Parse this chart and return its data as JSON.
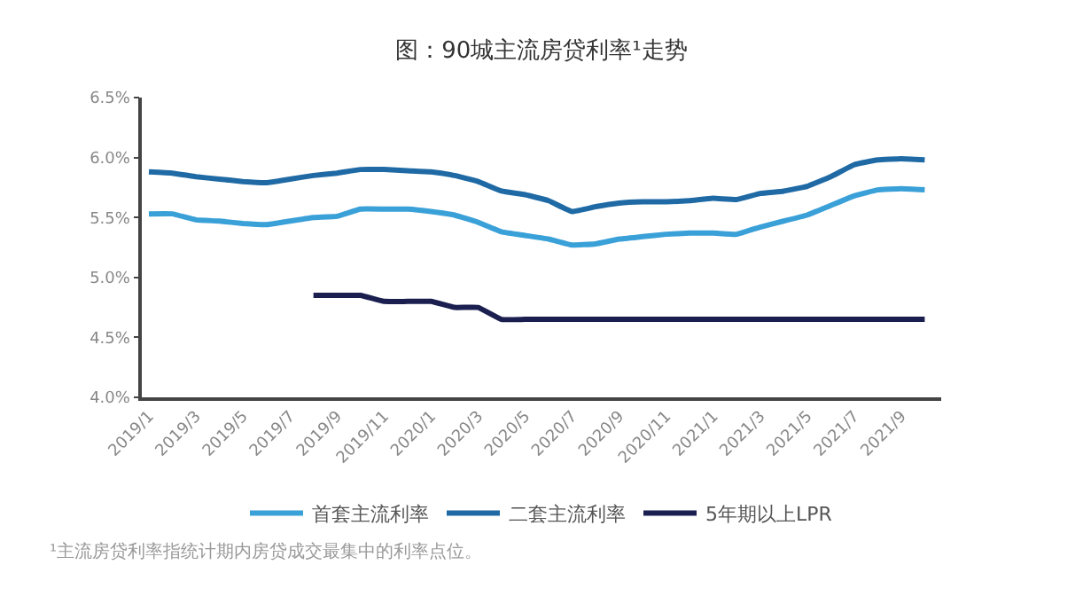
{
  "chart_data": {
    "type": "line",
    "title": "图：90城主流房贷利率¹走势",
    "categories": [
      "2019/1",
      null,
      "2019/3",
      null,
      "2019/5",
      null,
      "2019/7",
      null,
      "2019/9",
      null,
      "2019/11",
      null,
      "2020/1",
      null,
      "2020/3",
      null,
      "2020/5",
      null,
      "2020/7",
      null,
      "2020/9",
      null,
      "2020/11",
      null,
      "2021/1",
      null,
      "2021/3",
      null,
      "2021/5",
      null,
      "2021/7",
      null,
      "2021/9",
      null
    ],
    "series": [
      {
        "name": "首套主流利率",
        "color": "#3aa0d8",
        "values": [
          5.53,
          5.53,
          5.48,
          5.47,
          5.45,
          5.44,
          5.47,
          5.5,
          5.51,
          5.57,
          5.57,
          5.57,
          5.55,
          5.52,
          5.46,
          5.38,
          5.35,
          5.32,
          5.27,
          5.28,
          5.32,
          5.34,
          5.36,
          5.37,
          5.37,
          5.36,
          5.42,
          5.47,
          5.52,
          5.6,
          5.68,
          5.73,
          5.74,
          5.73
        ]
      },
      {
        "name": "二套主流利率",
        "color": "#1f6aa5",
        "values": [
          5.88,
          5.87,
          5.84,
          5.82,
          5.8,
          5.79,
          5.82,
          5.85,
          5.87,
          5.9,
          5.9,
          5.89,
          5.88,
          5.85,
          5.8,
          5.72,
          5.69,
          5.64,
          5.55,
          5.59,
          5.62,
          5.63,
          5.63,
          5.64,
          5.66,
          5.65,
          5.7,
          5.72,
          5.76,
          5.84,
          5.94,
          5.98,
          5.99,
          5.98
        ]
      },
      {
        "name": "5年期以上LPR",
        "color": "#1a1f4f",
        "values": [
          null,
          null,
          null,
          null,
          null,
          null,
          null,
          4.85,
          4.85,
          4.85,
          4.8,
          4.8,
          4.8,
          4.75,
          4.75,
          4.65,
          4.65,
          4.65,
          4.65,
          4.65,
          4.65,
          4.65,
          4.65,
          4.65,
          4.65,
          4.65,
          4.65,
          4.65,
          4.65,
          4.65,
          4.65,
          4.65,
          4.65,
          4.65
        ]
      }
    ],
    "ylim": [
      4.0,
      6.5
    ],
    "yticks": [
      {
        "value": 4.0,
        "label": "4.0%"
      },
      {
        "value": 4.5,
        "label": "4.5%"
      },
      {
        "value": 5.0,
        "label": "5.0%"
      },
      {
        "value": 5.5,
        "label": "5.5%"
      },
      {
        "value": 6.0,
        "label": "6.0%"
      },
      {
        "value": 6.5,
        "label": "6.5%"
      }
    ],
    "legend": "bottom",
    "marker": "none",
    "line_style": "solid",
    "annotations": [
      "¹主流房贷利率指统计期内房贷成交最集中的利率点位。"
    ]
  }
}
